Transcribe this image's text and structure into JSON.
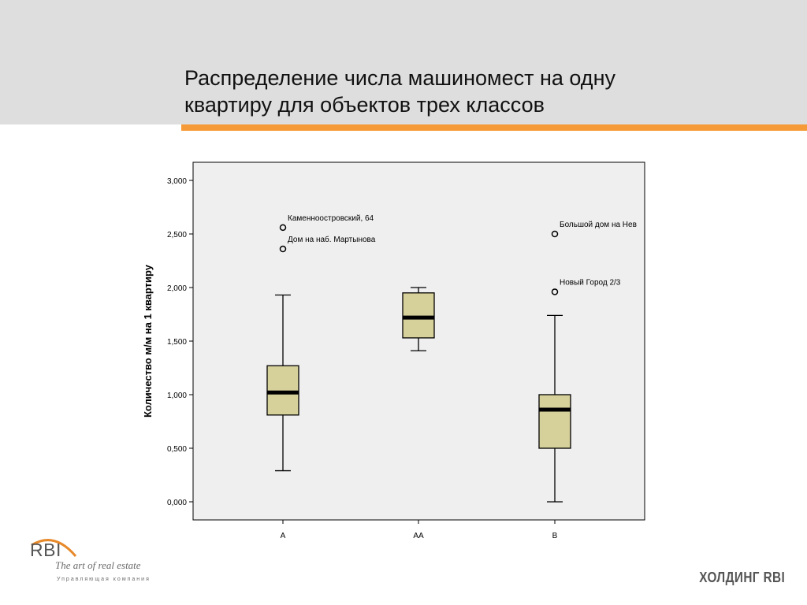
{
  "slide": {
    "title_line1": "Распределение числа машиномест на одну",
    "title_line2": "квартиру для объектов трех классов"
  },
  "branding": {
    "logo_text": "RBI",
    "tagline": "The art of real estate",
    "subtitle": "Управляющая компания",
    "holding": "ХОЛДИНГ RBI"
  },
  "colors": {
    "band": "#dedede",
    "accent": "#f59a36",
    "plot_bg": "#efefef",
    "box_fill": "#d6d09a",
    "median": "#000000"
  },
  "chart_data": {
    "type": "boxplot",
    "title": "",
    "xlabel": "",
    "ylabel": "Количество м/м на 1 квартиру",
    "ylim": [
      0,
      3.2
    ],
    "yticks": [
      {
        "value": 0,
        "label": "0,000"
      },
      {
        "value": 0.5,
        "label": "0,500"
      },
      {
        "value": 1,
        "label": "1,000"
      },
      {
        "value": 1.5,
        "label": "1,500"
      },
      {
        "value": 2,
        "label": "2,000"
      },
      {
        "value": 2.5,
        "label": "2,500"
      },
      {
        "value": 3,
        "label": "3,000"
      }
    ],
    "grid": false,
    "categories": [
      "A",
      "AA",
      "B"
    ],
    "boxes": [
      {
        "category": "A",
        "min": 0.29,
        "q1": 0.81,
        "median": 1.02,
        "q3": 1.27,
        "max": 1.93,
        "outliers": [
          {
            "value": 2.56,
            "label": "Каменноостровский, 64"
          },
          {
            "value": 2.36,
            "label": "Дом на наб. Мартынова"
          }
        ]
      },
      {
        "category": "AA",
        "min": 1.41,
        "q1": 1.53,
        "median": 1.72,
        "q3": 1.95,
        "max": 2.0,
        "outliers": []
      },
      {
        "category": "B",
        "min": 0.0,
        "q1": 0.5,
        "median": 0.86,
        "q3": 1.0,
        "max": 1.74,
        "outliers": [
          {
            "value": 2.5,
            "label": "Большой дом на Нев"
          },
          {
            "value": 1.96,
            "label": "Новый Город 2/3"
          }
        ]
      }
    ]
  }
}
